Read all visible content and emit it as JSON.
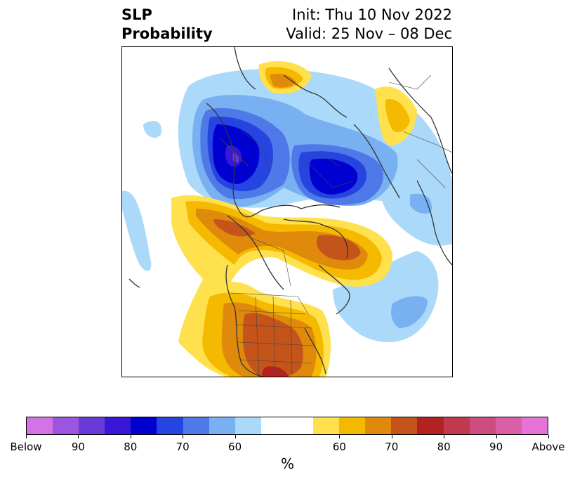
{
  "title": {
    "left_line1": "SLP",
    "left_line2": "Probability",
    "right_line1": "Init: Thu 10 Nov 2022",
    "right_line2": "Valid: 25 Nov – 08 Dec"
  },
  "colorbar": {
    "unit_label": "%",
    "colors": [
      "#d473e6",
      "#9b55e0",
      "#6a3ad8",
      "#3a17d6",
      "#0000d0",
      "#2644e0",
      "#4f78e8",
      "#78b0f2",
      "#abd9fa",
      "#ffffff",
      "#ffffff",
      "#ffe14d",
      "#f5b900",
      "#e08a0b",
      "#c4541a",
      "#b22222",
      "#c0394c",
      "#cc4d80",
      "#d95fa7",
      "#e673d8"
    ],
    "ticks": [
      "Below",
      "90",
      "80",
      "70",
      "60",
      "60",
      "70",
      "80",
      "90",
      "Above"
    ]
  }
}
